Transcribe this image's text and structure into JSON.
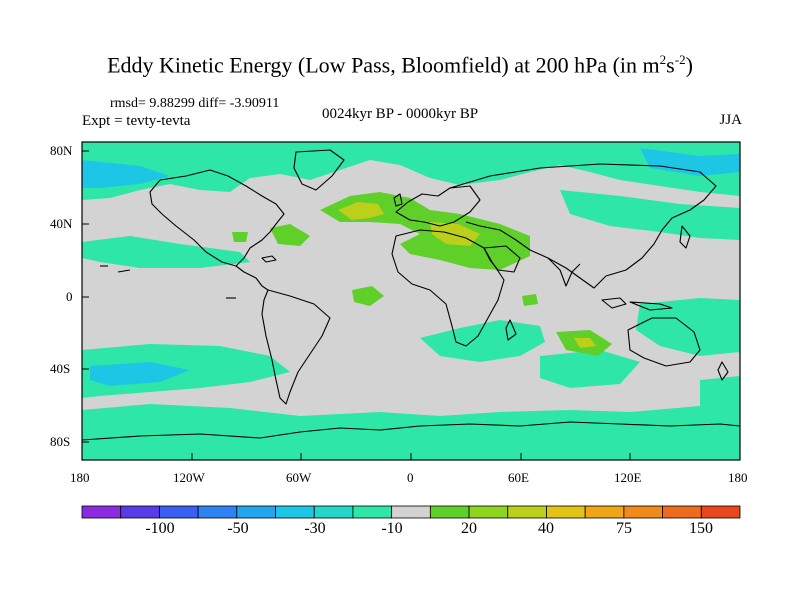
{
  "figure": {
    "title_prefix": "Eddy Kinetic Energy (Low Pass, Bloomfield) at 200 hPa (in m",
    "title_sup1": "2",
    "title_mid": "s",
    "title_sup2": "-2",
    "title_suffix": ")",
    "stats": "rmsd= 9.88299 diff= -3.90911",
    "expt": "Expt = tevty-tevta",
    "period": "0024kyr BP - 0000kyr BP",
    "season": "JJA"
  },
  "axes": {
    "lon_ticks": [
      "180",
      "120W",
      "60W",
      "0",
      "60E",
      "120E",
      "180"
    ],
    "lat_ticks": [
      "80N",
      "40N",
      "0",
      "40S",
      "80S"
    ]
  },
  "colorbar": {
    "colors": [
      "#8a2be2",
      "#5a3ce6",
      "#3b5ff0",
      "#2f82f2",
      "#22a6ee",
      "#1ec6e6",
      "#25d7c8",
      "#2ee6a8",
      "#d3d3d3",
      "#5fd02a",
      "#8fd41e",
      "#bccf1a",
      "#e2c318",
      "#f0a516",
      "#f08a1a",
      "#ee6a1c",
      "#e8461c"
    ],
    "labels": [
      "-100",
      "-50",
      "-30",
      "-10",
      "20",
      "40",
      "75",
      "150"
    ]
  },
  "map_colors": {
    "ocean": "#d3d3d3",
    "neg_weak": "#2ee6a8",
    "neg_strong": "#1ec6e6",
    "pos_weak": "#5fd02a",
    "pos_strong": "#bccf1a"
  }
}
